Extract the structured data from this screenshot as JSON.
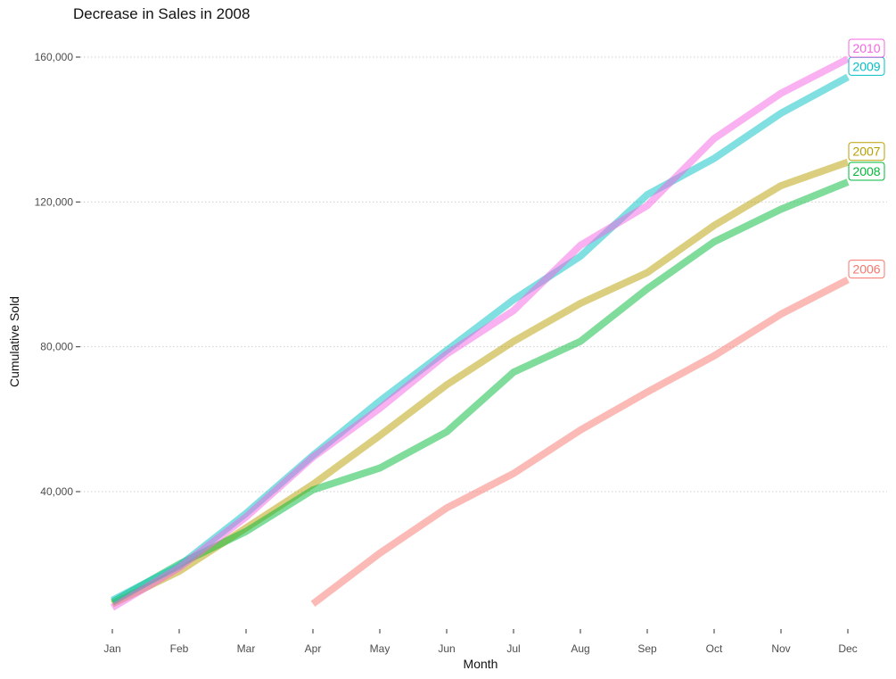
{
  "chart_data": {
    "type": "line",
    "title": "Decrease in Sales in 2008",
    "xlabel": "Month",
    "ylabel": "Cumulative Sold",
    "categories": [
      "Jan",
      "Feb",
      "Mar",
      "Apr",
      "May",
      "Jun",
      "Jul",
      "Aug",
      "Sep",
      "Oct",
      "Nov",
      "Dec"
    ],
    "ylim": [
      0,
      170000
    ],
    "yticks": [
      40000,
      80000,
      120000,
      160000
    ],
    "ytick_labels": [
      "40,000",
      "80,000",
      "120,000",
      "160,000"
    ],
    "grid": "horizontal dotted",
    "legend": "labels at line ends",
    "series": [
      {
        "name": "2006",
        "color": "#f8766d",
        "values": [
          null,
          null,
          null,
          9000,
          23000,
          35500,
          45000,
          57000,
          67500,
          77500,
          89000,
          98500
        ]
      },
      {
        "name": "2007",
        "color": "#b79f00",
        "values": [
          9000,
          18000,
          30000,
          42000,
          55500,
          69500,
          81500,
          92000,
          100500,
          113500,
          124500,
          131000
        ]
      },
      {
        "name": "2008",
        "color": "#00ba38",
        "values": [
          9500,
          20000,
          29000,
          40500,
          46500,
          56500,
          73000,
          81500,
          96000,
          109000,
          118000,
          125500
        ]
      },
      {
        "name": "2009",
        "color": "#00bfc4",
        "values": [
          10000,
          19500,
          34000,
          50000,
          65000,
          79000,
          93000,
          105000,
          122000,
          132000,
          144500,
          154500
        ]
      },
      {
        "name": "2010",
        "color": "#f564e3",
        "values": [
          8000,
          19000,
          33000,
          49500,
          63000,
          78000,
          90000,
          108000,
          119000,
          137500,
          150000,
          159500
        ]
      }
    ]
  }
}
